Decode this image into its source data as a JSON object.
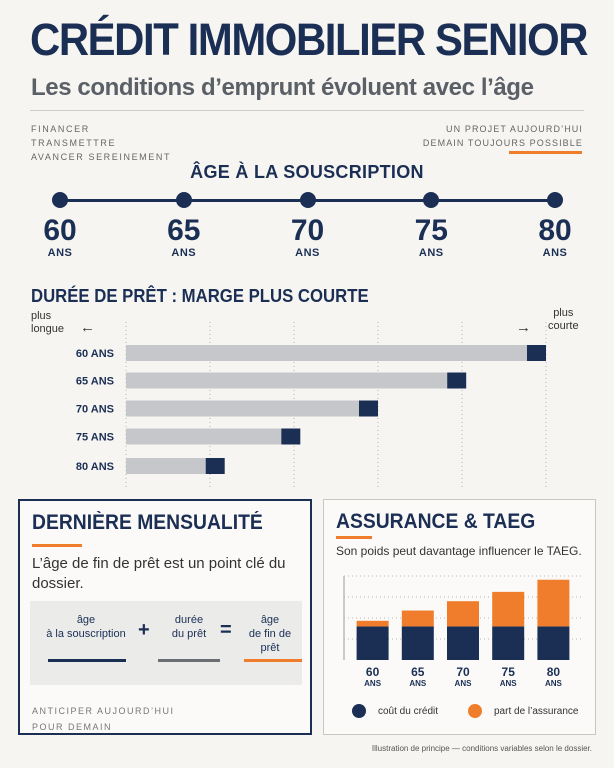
{
  "header": {
    "title": "CRÉDIT IMMOBILIER SENIOR",
    "subtitle": "Les conditions d’emprunt évoluent avec l’âge",
    "keywords_left": [
      "FINANCER",
      "TRANSMETTRE",
      "AVANCER SEREINEMENT"
    ],
    "keywords_right": [
      "UN PROJET AUJOURD’HUI",
      "DEMAIN TOUJOURS POSSIBLE"
    ]
  },
  "age_section": {
    "title": "ÂGE À LA SOUSCRIPTION",
    "unit": "ANS",
    "ages": [
      "60",
      "65",
      "70",
      "75",
      "80"
    ]
  },
  "duration_section": {
    "title": "DURÉE DE PRÊT : MARGE PLUS COURTE",
    "hint_left": [
      "plus",
      "longue"
    ],
    "hint_right": [
      "plus",
      "courte"
    ],
    "arrow_left": "←",
    "arrow_right": "→"
  },
  "last_payment": {
    "title": "DERNIÈRE MENSUALITÉ",
    "description": "L’âge de fin de prêt est un point clé du dossier.",
    "term1": [
      "âge",
      "à la souscription"
    ],
    "term2": [
      "durée",
      "du prêt"
    ],
    "term3": [
      "âge",
      "de fin de prêt"
    ],
    "op_plus": "+",
    "op_equals": "=",
    "footer": [
      "ANTICIPER AUJOURD’HUI",
      "POUR DEMAIN"
    ]
  },
  "insurance": {
    "title": "ASSURANCE & TAEG",
    "description": "Son poids peut davantage influencer le TAEG.",
    "legend_credit": "coût du crédit",
    "legend_insurance": "part de l’assurance"
  },
  "footnote": "Illustration de principe — conditions variables selon le dossier.",
  "colors": {
    "navy": "#1b2f55",
    "orange": "#f07d2b",
    "gray_bar": "#c5c7cb",
    "grid": "#b9b8b5"
  },
  "chart_data": [
    {
      "type": "bar",
      "orientation": "horizontal",
      "title": "DURÉE DE PRÊT : MARGE PLUS COURTE",
      "categories": [
        "60 ANS",
        "65 ANS",
        "70 ANS",
        "75 ANS",
        "80 ANS"
      ],
      "values": [
        100,
        81,
        60,
        41.5,
        23.5
      ],
      "xlim": [
        0,
        100
      ],
      "grid": true,
      "axis_labels": false
    },
    {
      "type": "bar",
      "stacked": true,
      "title": "ASSURANCE & TAEG",
      "categories": [
        "60",
        "65",
        "70",
        "75",
        "80"
      ],
      "category_unit": "ANS",
      "series": [
        {
          "name": "coût du crédit",
          "values": [
            36,
            36,
            36,
            36,
            36
          ]
        },
        {
          "name": "part de l’assurance",
          "values": [
            6,
            17,
            27,
            37,
            50
          ]
        }
      ],
      "ylim": [
        0,
        90
      ],
      "grid": true,
      "axis_labels": false
    }
  ]
}
